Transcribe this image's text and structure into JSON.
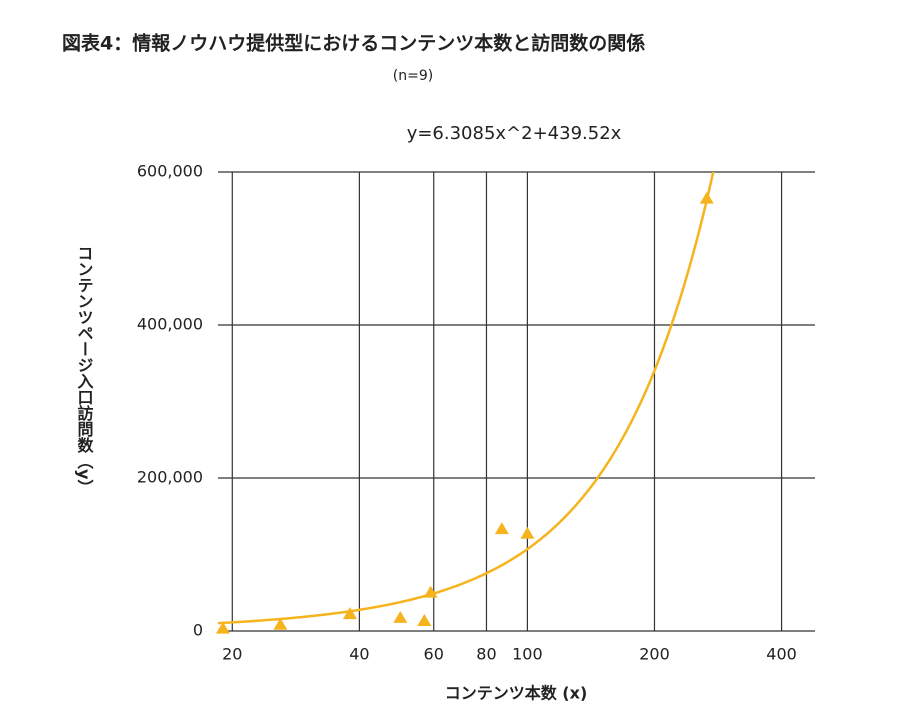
{
  "chart_data": {
    "type": "scatter",
    "title": "図表4：情報ノウハウ提供型におけるコンテンツ本数と訪問数の関係",
    "subtitle": "(n=9)",
    "trendline": {
      "equation": "y=6.3085x^2+439.52x",
      "coefficients": [
        6.3085,
        439.52
      ]
    },
    "x_label": "コンテンツ本数 (x)",
    "y_label": "コンテンツページ入口訪問数（y）",
    "x": [
      19,
      26,
      38,
      50,
      57,
      59,
      87,
      100,
      266
    ],
    "values": [
      3000,
      8000,
      22000,
      17000,
      13000,
      50000,
      133000,
      127000,
      565000
    ],
    "color": "#f5b41e",
    "xscale": "log",
    "xlim": [
      18.5,
      480
    ],
    "ylim": [
      0,
      600000
    ],
    "xticks": [
      20,
      40,
      60,
      80,
      100,
      200,
      400
    ],
    "yticks": [
      0,
      {
        "value": 200000,
        "label": "200,000"
      },
      {
        "value": 400000,
        "label": "400,000"
      },
      {
        "value": 600000,
        "label": "600,000"
      }
    ],
    "grid": true
  }
}
